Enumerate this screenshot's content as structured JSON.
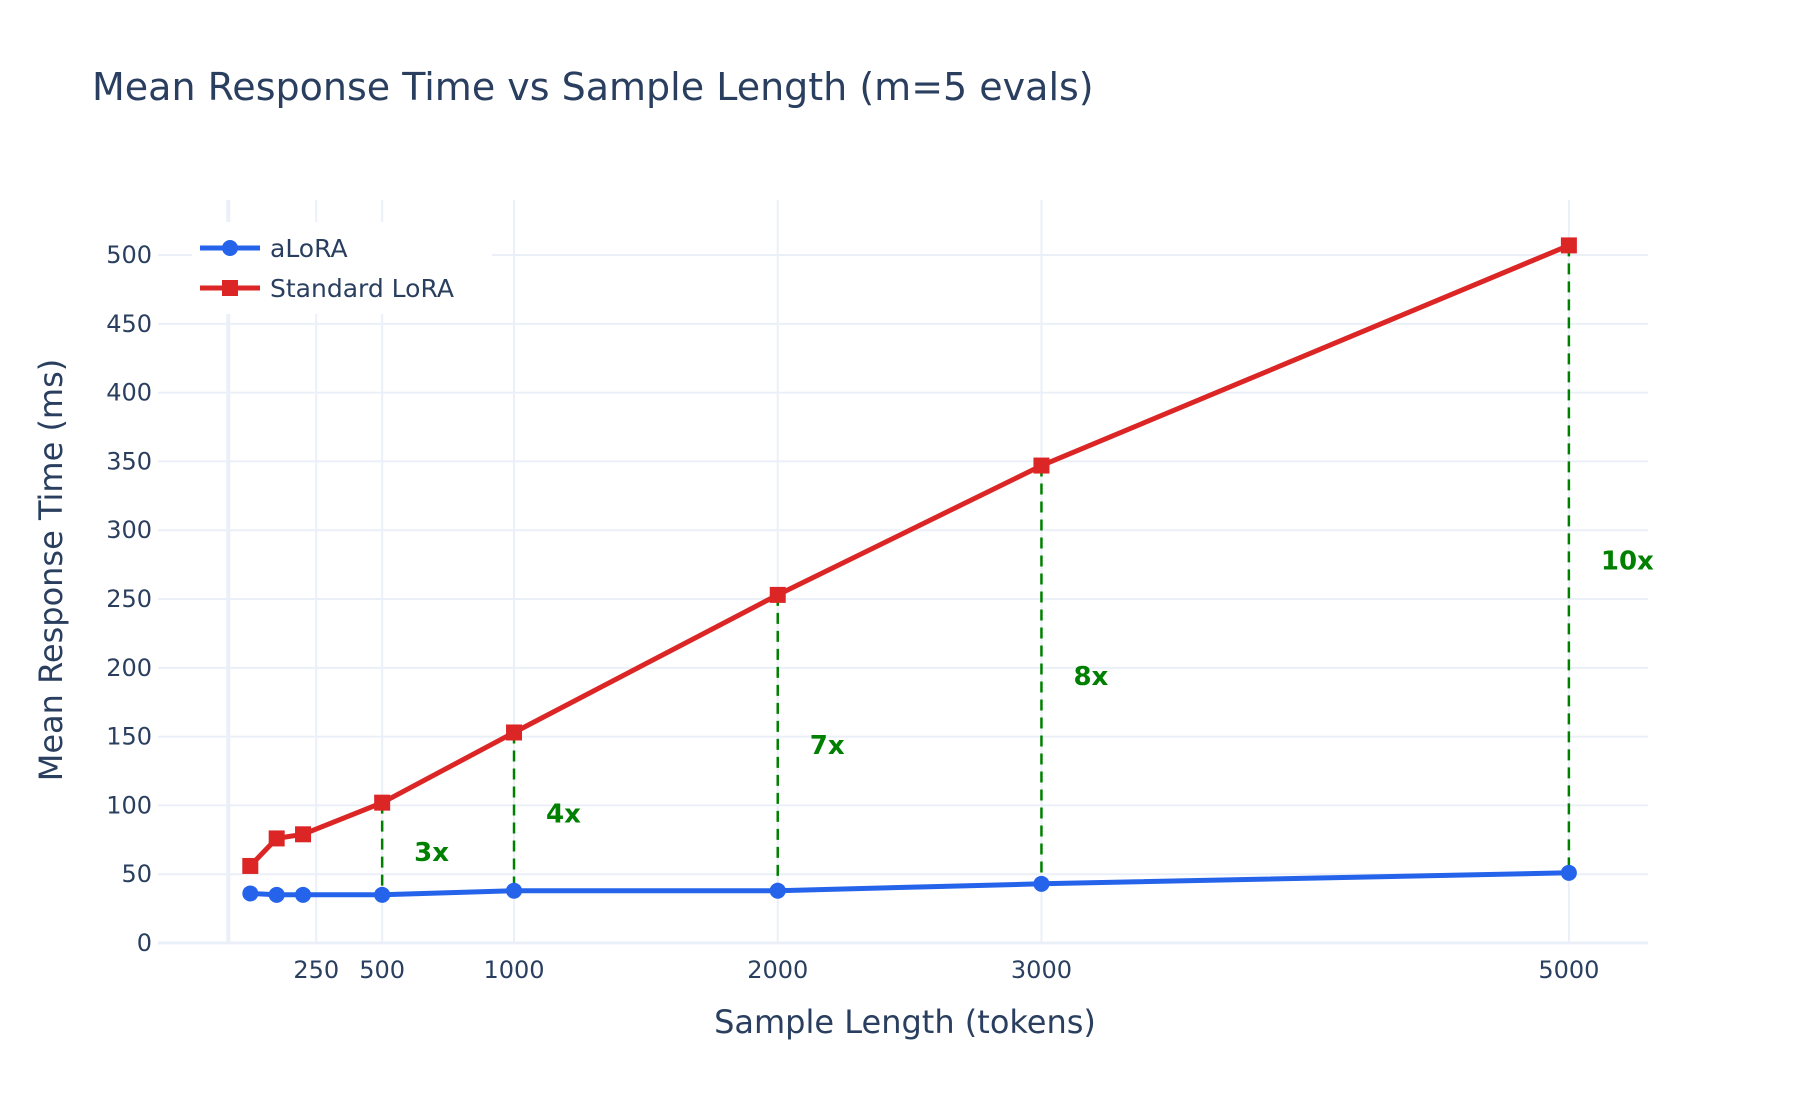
{
  "chart_data": {
    "type": "line",
    "title": "Mean Response Time vs Sample Length (m=5 evals)",
    "xlabel": "Sample Length (tokens)",
    "ylabel": "Mean Response Time (ms)",
    "xlim": [
      -350,
      5300
    ],
    "ylim": [
      0,
      540
    ],
    "x_ticks": [
      250,
      500,
      1000,
      2000,
      3000,
      5000
    ],
    "y_ticks": [
      0,
      50,
      100,
      150,
      200,
      250,
      300,
      350,
      400,
      450,
      500
    ],
    "grid": true,
    "legend_position": "top-left",
    "series": [
      {
        "name": "aLoRA",
        "color": "#2563eb",
        "marker": "circle",
        "x": [
          0,
          100,
          200,
          500,
          1000,
          2000,
          3000,
          5000
        ],
        "y": [
          36,
          35,
          35,
          35,
          38,
          38,
          43,
          51
        ]
      },
      {
        "name": "Standard LoRA",
        "color": "#dc2626",
        "marker": "square",
        "x": [
          0,
          100,
          200,
          500,
          1000,
          2000,
          3000,
          5000
        ],
        "y": [
          56,
          76,
          79,
          102,
          153,
          253,
          347,
          507
        ]
      }
    ],
    "annotations": [
      {
        "x": 500,
        "label": "3x",
        "label_y": 66
      },
      {
        "x": 1000,
        "label": "4x",
        "label_y": 94
      },
      {
        "x": 2000,
        "label": "7x",
        "label_y": 144
      },
      {
        "x": 3000,
        "label": "8x",
        "label_y": 194
      },
      {
        "x": 5000,
        "label": "10x",
        "label_y": 278
      }
    ],
    "annotation_color": "#008000"
  }
}
